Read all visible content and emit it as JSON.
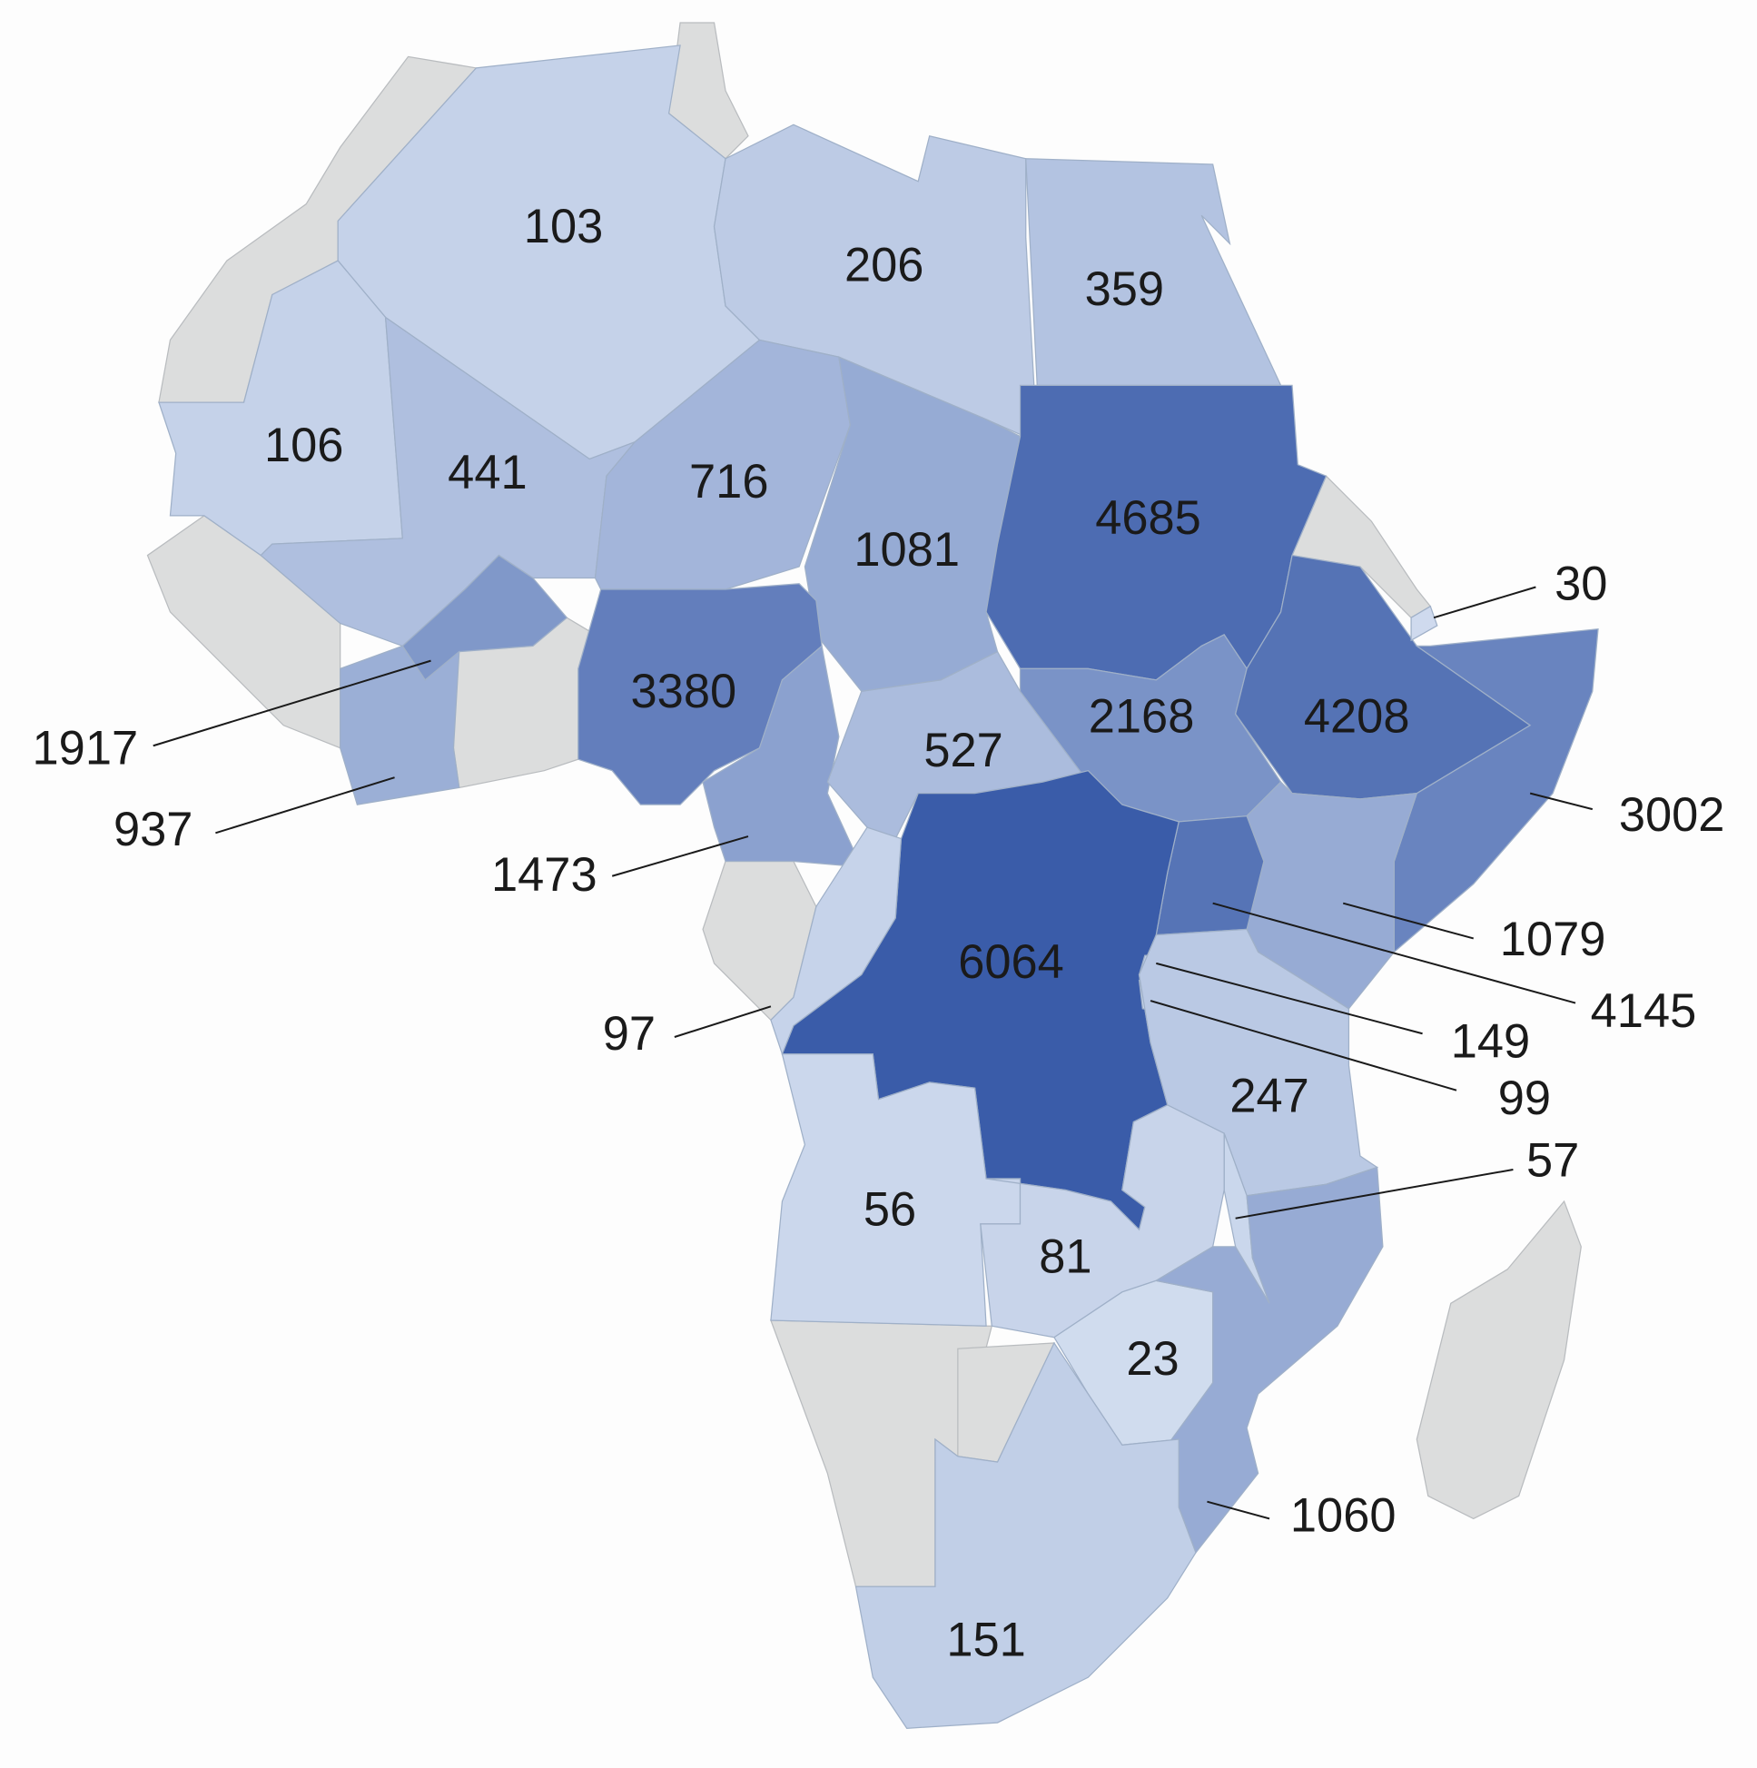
{
  "chart_data": {
    "type": "choropleth",
    "values": [
      103,
      206,
      359,
      106,
      441,
      716,
      1081,
      4685,
      3380,
      1917,
      937,
      1473,
      527,
      2168,
      4208,
      30,
      3002,
      1079,
      4145,
      6064,
      97,
      149,
      99,
      247,
      57,
      56,
      81,
      23,
      1060,
      151
    ],
    "color_range": [
      "#dae4f3",
      "#3a5ca9"
    ],
    "no_data_color": "#dcdddd"
  }
}
